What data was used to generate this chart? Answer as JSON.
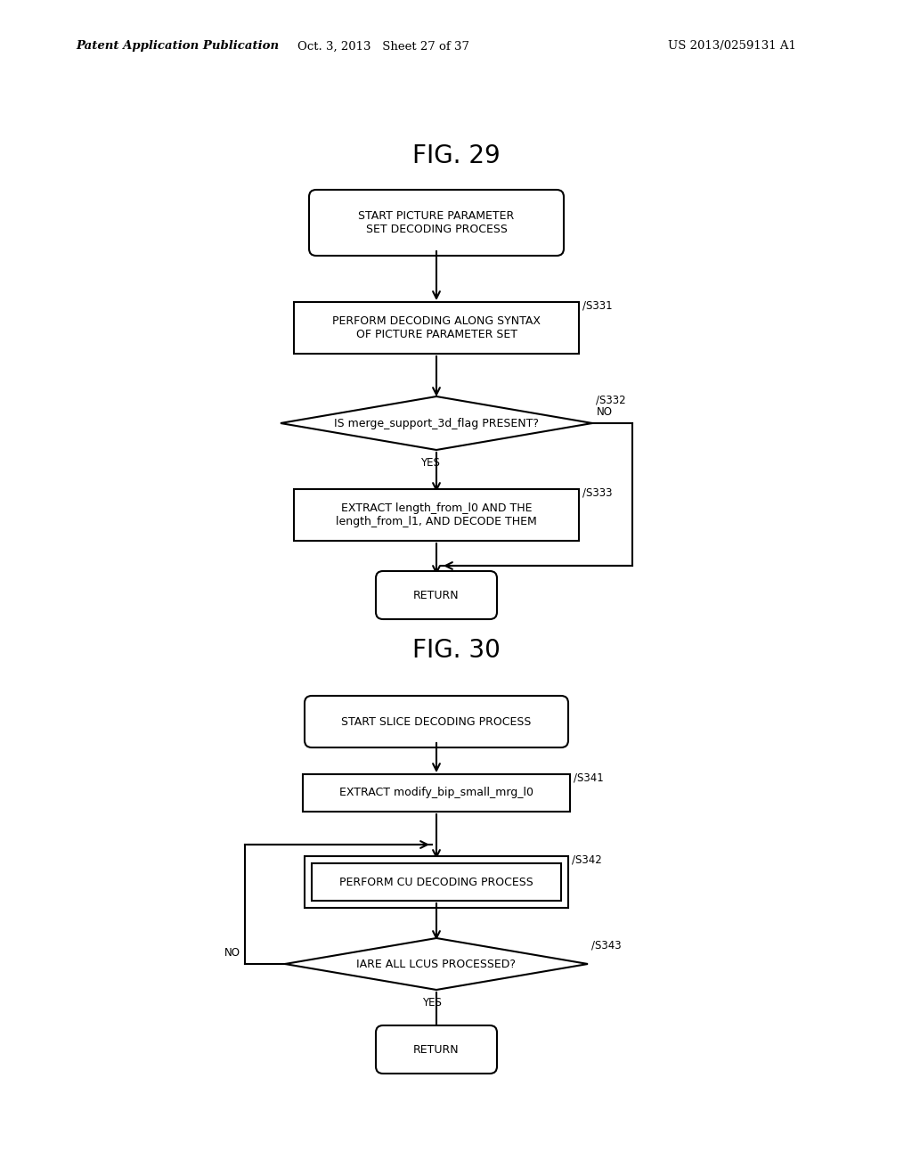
{
  "bg_color": "#ffffff",
  "text_color": "#000000",
  "header_left": "Patent Application Publication",
  "header_center": "Oct. 3, 2013   Sheet 27 of 37",
  "header_right": "US 2013/0259131 A1",
  "fig29_title": "FIG. 29",
  "fig30_title": "FIG. 30"
}
